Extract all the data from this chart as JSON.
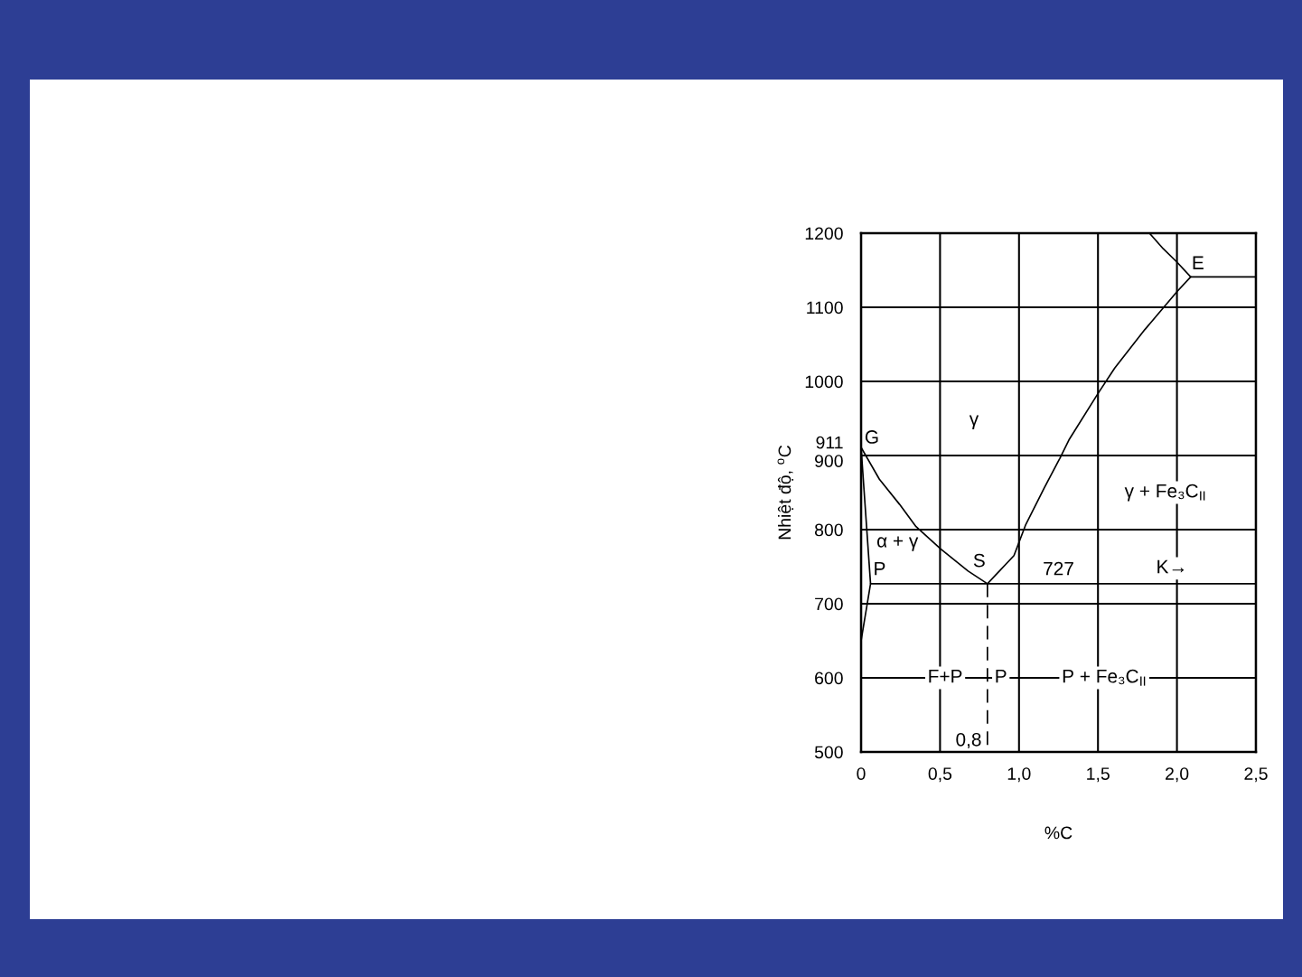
{
  "chart_data": {
    "type": "line",
    "xlabel": "%C",
    "ylabel": "Nhiệt độ, $^{o}$C",
    "xlim": [
      0,
      2.5
    ],
    "ylim": [
      500,
      1200
    ],
    "xticks": [
      0,
      {
        "value": 0.5,
        "label": "0,5"
      },
      {
        "value": 1.0,
        "label": "1,0"
      },
      {
        "value": 1.5,
        "label": "1,5"
      },
      {
        "value": 2.0,
        "label": "2,0"
      },
      {
        "value": 2.5,
        "label": "2,5"
      }
    ],
    "yticks": [
      500,
      600,
      700,
      800,
      900,
      911,
      1000,
      1100,
      1200
    ],
    "grid": true,
    "series": [
      {
        "color": "#000000",
        "x": [
          0,
          0.116,
          0.244,
          0.348,
          0.504,
          0.678,
          0.8
        ],
        "values": [
          911,
          868,
          834,
          804,
          774,
          744,
          727
        ]
      },
      {
        "color": "#000000",
        "x": [
          0.8,
          0.968,
          1.043,
          1.159,
          1.258,
          1.316,
          1.501,
          1.606,
          1.797,
          2.0,
          2.087
        ],
        "values": [
          727,
          765,
          807,
          856,
          896,
          921,
          984,
          1018,
          1070,
          1121,
          1141
        ]
      },
      {
        "color": "#000000",
        "x": [
          1.826,
          1.913,
          2.0,
          2.087
        ],
        "values": [
          1200,
          1179,
          1161,
          1141
        ]
      },
      {
        "color": "#000000",
        "x": [
          2.087,
          2.5
        ],
        "values": [
          1141,
          1141
        ]
      },
      {
        "color": "#000000",
        "x": [
          0,
          0.06,
          0
        ],
        "values": [
          911,
          727,
          650
        ]
      },
      {
        "color": "#000000",
        "x": [
          0.06,
          2.5
        ],
        "values": [
          727,
          727
        ]
      },
      {
        "color": "#000000",
        "x": [
          0.8,
          0.8
        ],
        "values": [
          727,
          500
        ],
        "line_style": "dashed"
      }
    ],
    "annotations": [
      {
        "text": "G",
        "x": 0,
        "y": 911
      },
      "γ",
      "α + γ",
      {
        "text": "P",
        "x": 0.06,
        "y": 727
      },
      {
        "text": "S",
        "x": 0.8,
        "y": 727
      },
      {
        "text": "727",
        "x": 1.25,
        "y": 727
      },
      {
        "text": "E",
        "x": 2.087,
        "y": 1141
      },
      "γ + Fe₃C$_{II}$",
      "K→",
      "F+P",
      "P",
      "P + Fe₃C$_{II}$",
      {
        "text": "0,8",
        "x": 0.8,
        "y": 500
      }
    ]
  }
}
